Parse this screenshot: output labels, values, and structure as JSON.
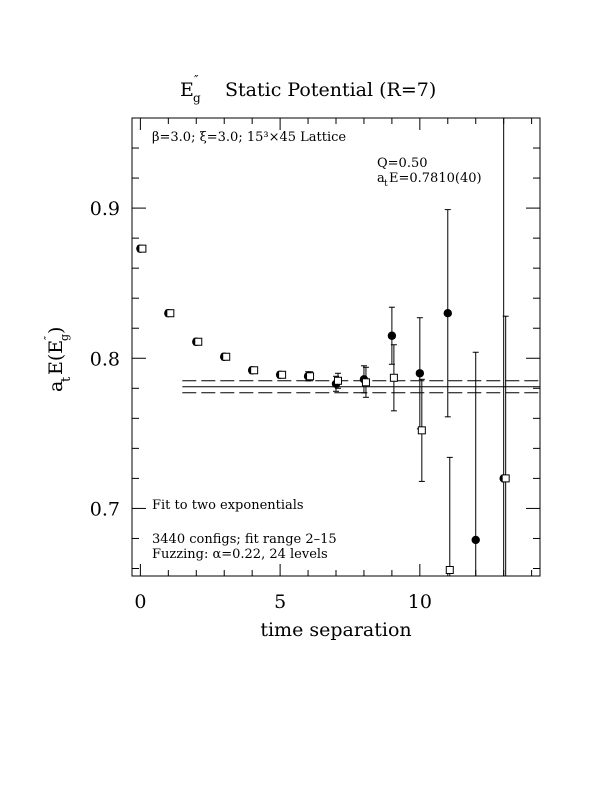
{
  "chart_data": {
    "type": "scatter",
    "title_main": "E",
    "title_sup": "″",
    "title_sub": "g",
    "title_rest": "Static Potential (R=7)",
    "xlabel": "time separation",
    "ylabel_a": "a",
    "ylabel_t": "t",
    "ylabel_E": "E(E",
    "ylabel_sup": "″",
    "ylabel_sub": "g",
    "ylabel_close": " )",
    "xlim": [
      -0.3,
      14.3
    ],
    "ylim": [
      0.655,
      0.96
    ],
    "x_ticks": [
      0,
      5,
      10
    ],
    "x_tick_labels": [
      "0",
      "5",
      "10"
    ],
    "y_ticks": [
      0.7,
      0.8,
      0.9
    ],
    "y_tick_labels": [
      "0.7",
      "0.8",
      "0.9"
    ],
    "annotations": {
      "lattice": "β=3.0; ξ=3.0; 15³×45 Lattice",
      "q": "Q=0.50",
      "ate_a": "a",
      "ate_t": "t",
      "ate_rest": "E=0.7810(40)",
      "fit": "Fit to two exponentials",
      "configs": "3440 configs; fit range 2–15",
      "fuzzing": "Fuzzing: α=0.22, 24 levels"
    },
    "fit": {
      "value": 0.781,
      "error": 0.004,
      "x_start": 1.5,
      "x_end": 14.3
    },
    "series": [
      {
        "marker": "filled-circle",
        "points": [
          {
            "x": 0,
            "y": 0.873,
            "err": 0.002
          },
          {
            "x": 1,
            "y": 0.83,
            "err": 0.002
          },
          {
            "x": 2,
            "y": 0.811,
            "err": 0.002
          },
          {
            "x": 3,
            "y": 0.801,
            "err": 0.002
          },
          {
            "x": 4,
            "y": 0.792,
            "err": 0.002
          },
          {
            "x": 5,
            "y": 0.789,
            "err": 0.002
          },
          {
            "x": 6,
            "y": 0.788,
            "err": 0.003
          },
          {
            "x": 7,
            "y": 0.783,
            "err": 0.005
          },
          {
            "x": 8,
            "y": 0.786,
            "err": 0.009
          },
          {
            "x": 9,
            "y": 0.815,
            "err": 0.019
          },
          {
            "x": 10,
            "y": 0.79,
            "err": 0.037
          },
          {
            "x": 11,
            "y": 0.83,
            "err": 0.069
          },
          {
            "x": 12,
            "y": 0.679,
            "err": 0.125
          },
          {
            "x": 13,
            "y": 0.72,
            "err": 0.3
          }
        ]
      },
      {
        "marker": "open-square",
        "points": [
          {
            "x": 0,
            "y": 0.873,
            "err": 0.002
          },
          {
            "x": 1,
            "y": 0.83,
            "err": 0.002
          },
          {
            "x": 2,
            "y": 0.811,
            "err": 0.002
          },
          {
            "x": 3,
            "y": 0.801,
            "err": 0.002
          },
          {
            "x": 4,
            "y": 0.792,
            "err": 0.002
          },
          {
            "x": 5,
            "y": 0.789,
            "err": 0.002
          },
          {
            "x": 6,
            "y": 0.788,
            "err": 0.003
          },
          {
            "x": 7,
            "y": 0.785,
            "err": 0.005
          },
          {
            "x": 8,
            "y": 0.784,
            "err": 0.01
          },
          {
            "x": 9,
            "y": 0.787,
            "err": 0.022
          },
          {
            "x": 10,
            "y": 0.752,
            "err": 0.034
          },
          {
            "x": 11,
            "y": 0.659,
            "err": 0.075
          },
          {
            "x": 13,
            "y": 0.72,
            "err": 0.108
          }
        ]
      }
    ]
  }
}
